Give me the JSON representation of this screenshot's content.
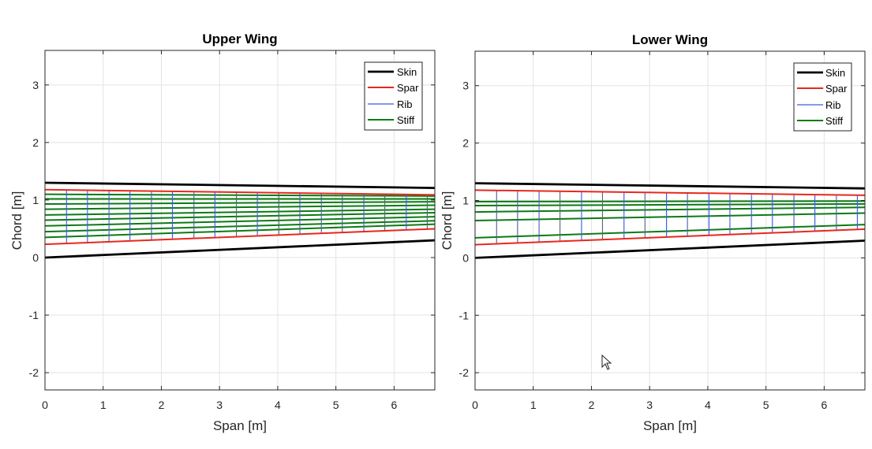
{
  "colors": {
    "skin": "#000000",
    "spar": "#e8281e",
    "rib": "#3c5ae6",
    "stiff": "#0b7a12",
    "grid": "#e3e3e3",
    "axis": "#262626"
  },
  "chart_data": [
    {
      "type": "line",
      "title": "Upper Wing",
      "xlabel": "Span [m]",
      "ylabel": "Chord [m]",
      "xlim": [
        0,
        6.7
      ],
      "ylim": [
        -2.3,
        3.6
      ],
      "xticks": [
        0,
        1,
        2,
        3,
        4,
        5,
        6
      ],
      "yticks": [
        -2,
        -1,
        0,
        1,
        2,
        3
      ],
      "grid": true,
      "legend_position": "top-right",
      "legend": [
        "Skin",
        "Spar",
        "Rib",
        "Stiff"
      ],
      "skin": {
        "name": "Skin",
        "x": [
          0,
          6.7
        ],
        "lower": [
          0,
          0.3
        ],
        "upper": [
          1.3,
          1.21
        ]
      },
      "spar": {
        "name": "Spar",
        "x": [
          0,
          6.7
        ],
        "lower": [
          0.23,
          0.5
        ],
        "upper": [
          1.18,
          1.09
        ]
      },
      "ribs": {
        "name": "Rib",
        "x": [
          0.37,
          0.73,
          1.1,
          1.46,
          1.83,
          2.19,
          2.56,
          2.92,
          3.29,
          3.65,
          4.02,
          4.38,
          4.75,
          5.11,
          5.48,
          5.84,
          6.21,
          6.57
        ]
      },
      "stiffeners": {
        "name": "Stiff",
        "x": [
          0,
          6.7
        ],
        "lines": [
          [
            0.35,
            0.58
          ],
          [
            0.45,
            0.64
          ],
          [
            0.55,
            0.71
          ],
          [
            0.65,
            0.78
          ],
          [
            0.74,
            0.84
          ],
          [
            0.84,
            0.91
          ],
          [
            0.93,
            0.97
          ],
          [
            1.02,
            1.02
          ],
          [
            1.1,
            1.07
          ]
        ]
      }
    },
    {
      "type": "line",
      "title": "Lower Wing",
      "xlabel": "Span [m]",
      "ylabel": "Chord [m]",
      "xlim": [
        0,
        6.7
      ],
      "ylim": [
        -2.3,
        3.6
      ],
      "xticks": [
        0,
        1,
        2,
        3,
        4,
        5,
        6
      ],
      "yticks": [
        -2,
        -1,
        0,
        1,
        2,
        3
      ],
      "grid": true,
      "legend_position": "top-right",
      "legend": [
        "Skin",
        "Spar",
        "Rib",
        "Stiff"
      ],
      "skin": {
        "name": "Skin",
        "x": [
          0,
          6.7
        ],
        "lower": [
          0,
          0.3
        ],
        "upper": [
          1.3,
          1.21
        ]
      },
      "spar": {
        "name": "Spar",
        "x": [
          0,
          6.7
        ],
        "lower": [
          0.23,
          0.5
        ],
        "upper": [
          1.18,
          1.09
        ]
      },
      "ribs": {
        "name": "Rib",
        "x": [
          0.37,
          0.73,
          1.1,
          1.46,
          1.83,
          2.19,
          2.56,
          2.92,
          3.29,
          3.65,
          4.02,
          4.38,
          4.75,
          5.11,
          5.48,
          5.84,
          6.21,
          6.57
        ]
      },
      "stiffeners": {
        "name": "Stiff",
        "x": [
          0,
          6.7
        ],
        "lines": [
          [
            0.35,
            0.58
          ],
          [
            0.65,
            0.78
          ],
          [
            0.8,
            0.88
          ],
          [
            0.91,
            0.94
          ],
          [
            0.98,
            0.99
          ]
        ]
      }
    }
  ]
}
